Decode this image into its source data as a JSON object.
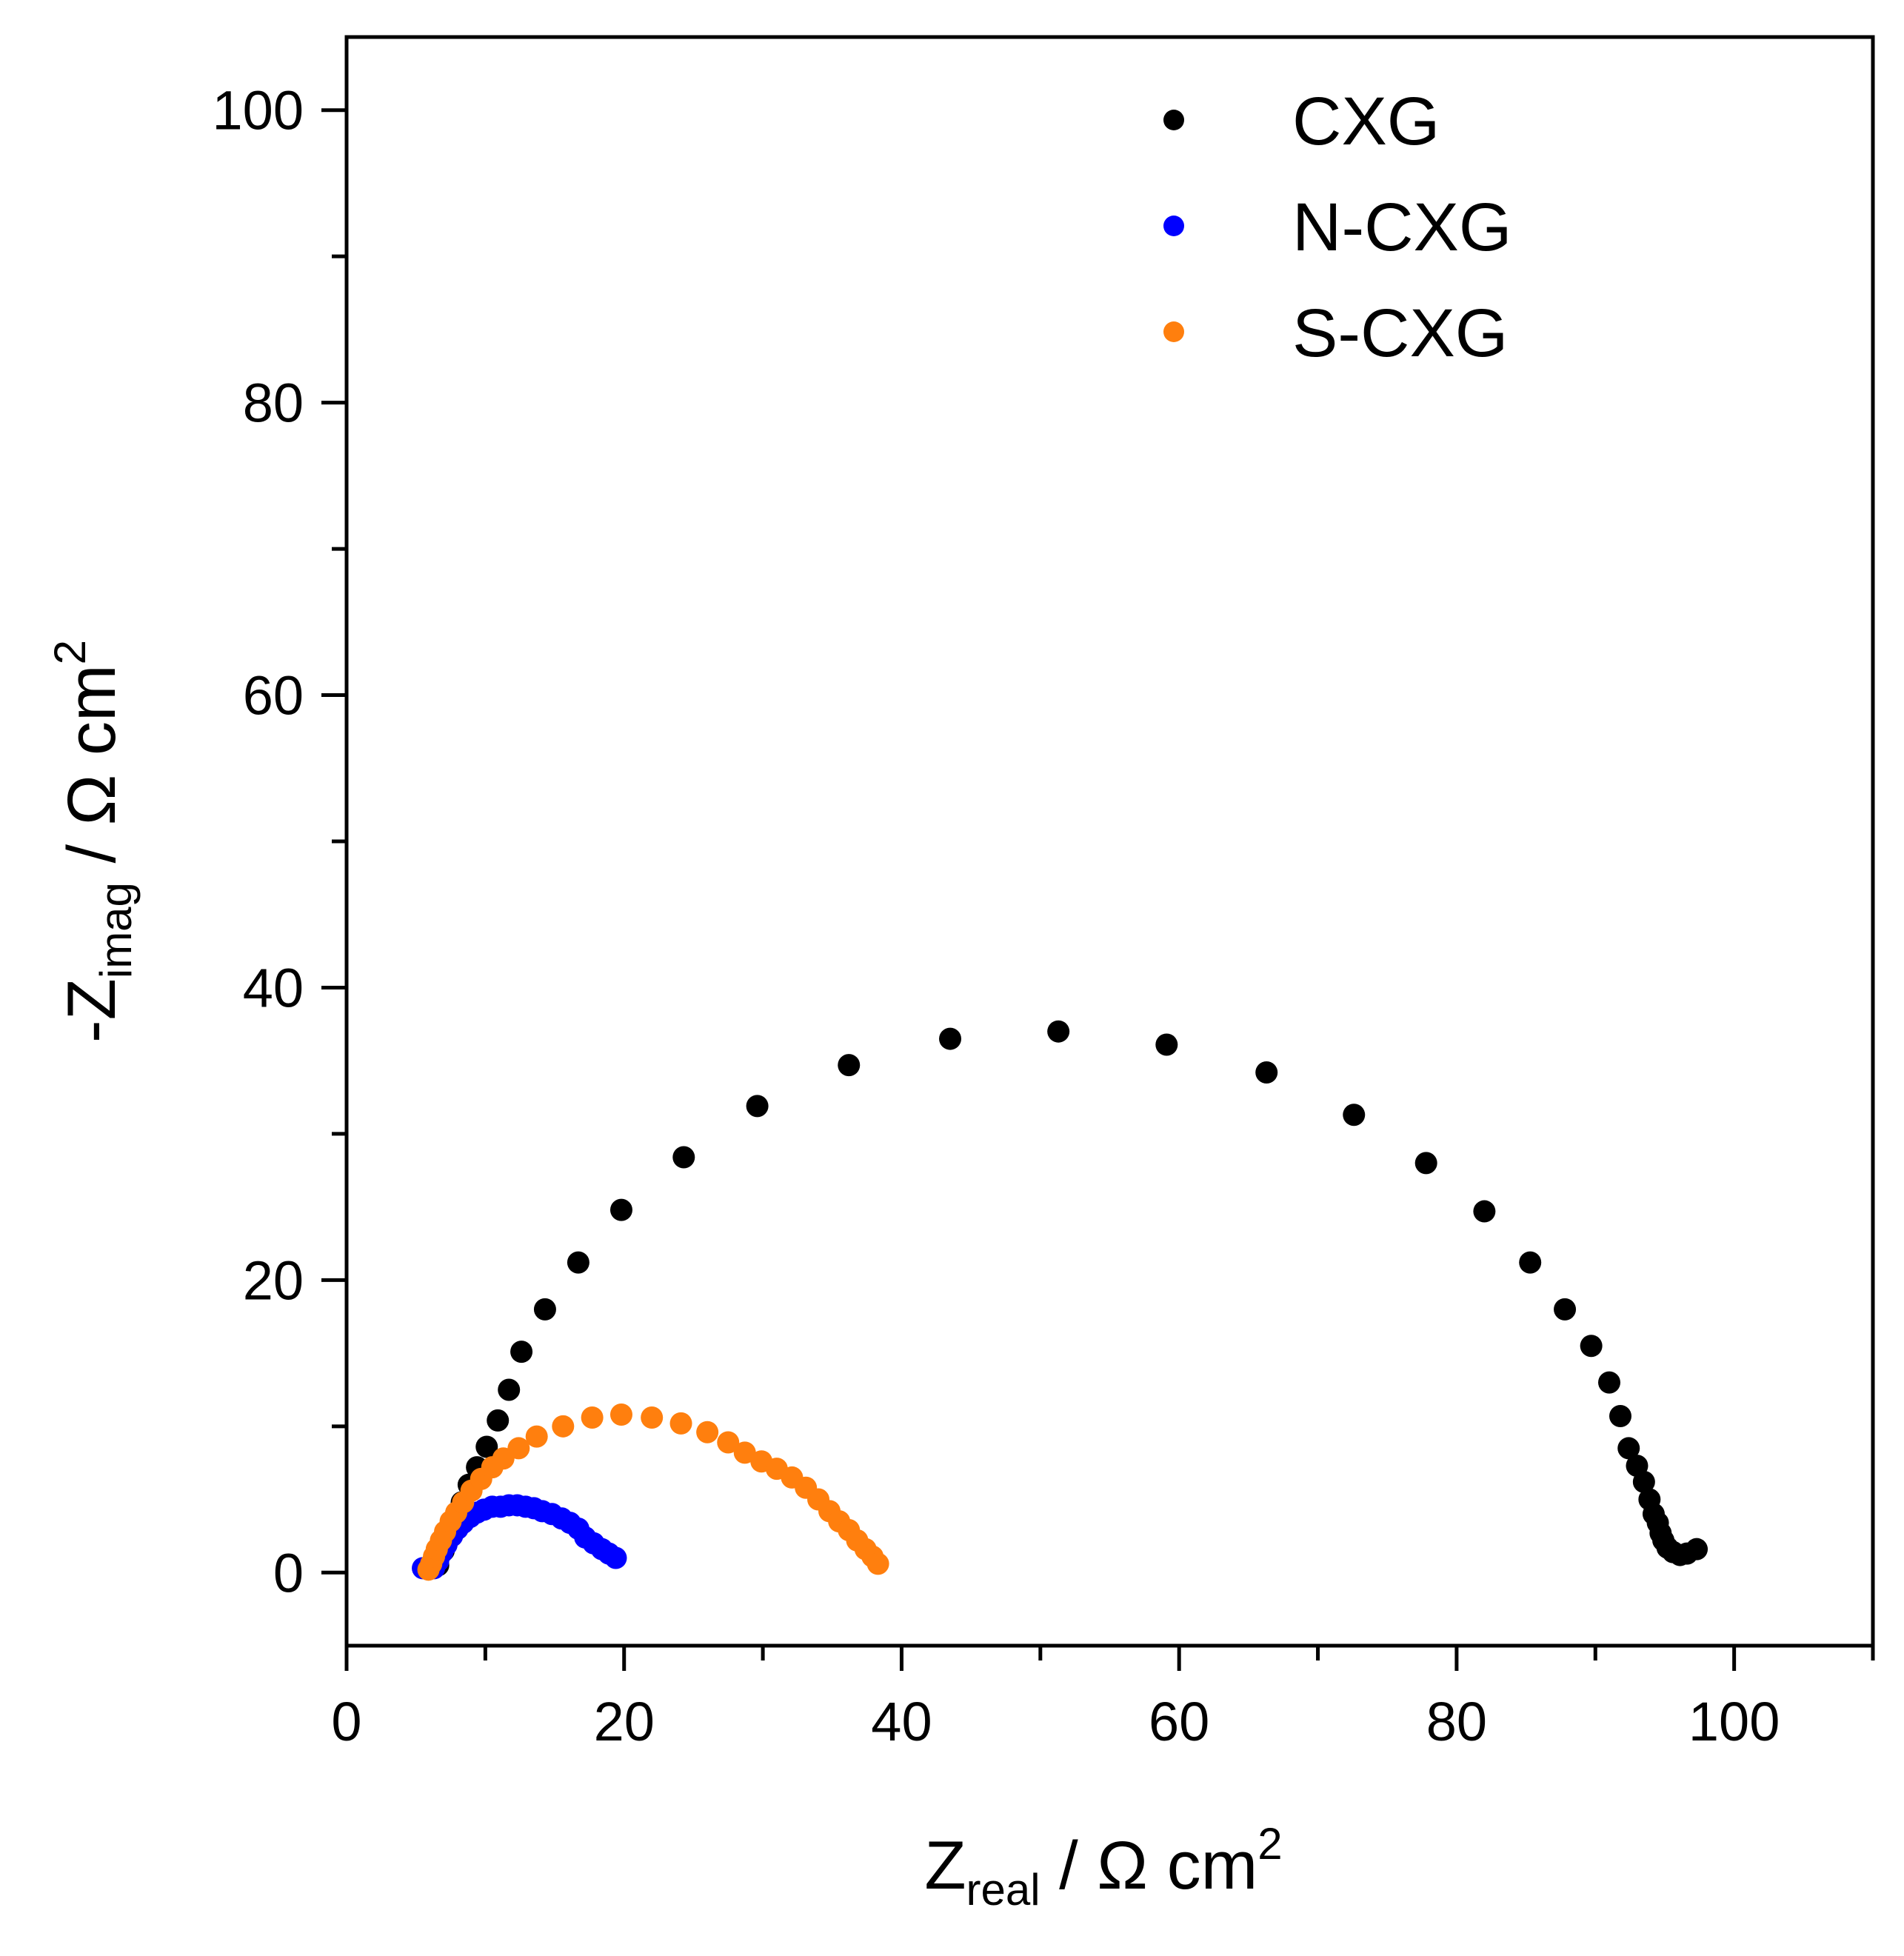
{
  "chart_data": {
    "type": "scatter",
    "xlabel": {
      "main": "Z",
      "sub": "real",
      "rest": " / Ω cm",
      "sup": "2"
    },
    "ylabel": {
      "main": "-Z",
      "sub": "imag",
      "rest": " / Ω cm",
      "sup": "2"
    },
    "xlim": [
      0,
      110
    ],
    "ylim": [
      -5,
      105
    ],
    "x_ticks": [
      "0",
      "20",
      "40",
      "60",
      "80",
      "100"
    ],
    "y_ticks": [
      "0",
      "20",
      "40",
      "60",
      "80",
      "100"
    ],
    "x_tick_values": [
      0,
      20,
      40,
      60,
      80,
      100
    ],
    "y_tick_values": [
      0,
      20,
      40,
      60,
      80,
      100
    ],
    "x_minor_tick_values": [
      10,
      30,
      50,
      70,
      90,
      110
    ],
    "y_minor_tick_values": [
      10,
      30,
      50,
      70,
      90
    ],
    "legend_position": "top-right",
    "series": [
      {
        "name": "CXG",
        "color": "#000000",
        "points": [
          [
            6.6,
            0.5
          ],
          [
            7.0,
            1.5
          ],
          [
            7.4,
            2.6
          ],
          [
            7.8,
            3.7
          ],
          [
            8.3,
            4.8
          ],
          [
            8.8,
            6.0
          ],
          [
            9.4,
            7.2
          ],
          [
            10.1,
            8.6
          ],
          [
            10.9,
            10.4
          ],
          [
            11.7,
            12.5
          ],
          [
            12.6,
            15.1
          ],
          [
            14.3,
            18.0
          ],
          [
            16.7,
            21.2
          ],
          [
            19.8,
            24.8
          ],
          [
            24.3,
            28.4
          ],
          [
            29.6,
            31.9
          ],
          [
            36.2,
            34.7
          ],
          [
            43.5,
            36.5
          ],
          [
            51.3,
            37.0
          ],
          [
            59.1,
            36.1
          ],
          [
            66.3,
            34.2
          ],
          [
            72.6,
            31.3
          ],
          [
            77.8,
            28.0
          ],
          [
            82.0,
            24.7
          ],
          [
            85.3,
            21.2
          ],
          [
            87.8,
            18.0
          ],
          [
            89.7,
            15.5
          ],
          [
            91.0,
            13.0
          ],
          [
            91.8,
            10.7
          ],
          [
            92.4,
            8.5
          ],
          [
            93.0,
            7.3
          ],
          [
            93.5,
            6.2
          ],
          [
            93.9,
            5.0
          ],
          [
            94.2,
            4.0
          ],
          [
            94.5,
            3.4
          ],
          [
            94.7,
            2.7
          ],
          [
            94.9,
            2.2
          ],
          [
            95.2,
            1.7
          ],
          [
            95.6,
            1.4
          ],
          [
            96.1,
            1.2
          ],
          [
            96.6,
            1.3
          ],
          [
            97.3,
            1.6
          ]
        ]
      },
      {
        "name": "N-CXG",
        "color": "#0000ff",
        "points": [
          [
            5.5,
            0.3
          ],
          [
            6.3,
            0.3
          ],
          [
            6.6,
            0.8
          ],
          [
            6.9,
            1.4
          ],
          [
            7.2,
            1.9
          ],
          [
            7.6,
            2.5
          ],
          [
            8.0,
            3.0
          ],
          [
            8.4,
            3.4
          ],
          [
            8.9,
            3.8
          ],
          [
            9.4,
            4.1
          ],
          [
            9.9,
            4.3
          ],
          [
            10.5,
            4.5
          ],
          [
            11.1,
            4.5
          ],
          [
            11.7,
            4.6
          ],
          [
            12.3,
            4.6
          ],
          [
            12.9,
            4.5
          ],
          [
            13.5,
            4.4
          ],
          [
            14.1,
            4.2
          ],
          [
            14.8,
            4.0
          ],
          [
            15.5,
            3.7
          ],
          [
            16.1,
            3.4
          ],
          [
            16.7,
            3.0
          ],
          [
            17.2,
            2.4
          ],
          [
            17.8,
            2.0
          ],
          [
            18.4,
            1.6
          ],
          [
            18.9,
            1.3
          ],
          [
            19.4,
            1.0
          ]
        ]
      },
      {
        "name": "S-CXG",
        "color": "#ff7f0e",
        "points": [
          [
            5.9,
            0.2
          ],
          [
            6.1,
            0.6
          ],
          [
            6.3,
            1.1
          ],
          [
            6.5,
            1.6
          ],
          [
            6.8,
            2.2
          ],
          [
            7.1,
            2.8
          ],
          [
            7.5,
            3.5
          ],
          [
            7.9,
            4.1
          ],
          [
            8.4,
            4.8
          ],
          [
            9.0,
            5.6
          ],
          [
            9.7,
            6.4
          ],
          [
            10.5,
            7.2
          ],
          [
            11.3,
            7.8
          ],
          [
            12.4,
            8.5
          ],
          [
            13.7,
            9.3
          ],
          [
            15.6,
            10.0
          ],
          [
            17.7,
            10.6
          ],
          [
            19.8,
            10.8
          ],
          [
            22.0,
            10.6
          ],
          [
            24.1,
            10.2
          ],
          [
            26.0,
            9.6
          ],
          [
            27.5,
            8.9
          ],
          [
            28.7,
            8.2
          ],
          [
            29.9,
            7.6
          ],
          [
            31.0,
            7.1
          ],
          [
            32.1,
            6.5
          ],
          [
            33.1,
            5.8
          ],
          [
            34.0,
            5.0
          ],
          [
            34.8,
            4.2
          ],
          [
            35.5,
            3.5
          ],
          [
            36.2,
            2.9
          ],
          [
            36.8,
            2.2
          ],
          [
            37.4,
            1.6
          ],
          [
            37.9,
            1.1
          ],
          [
            38.3,
            0.6
          ]
        ]
      }
    ]
  }
}
